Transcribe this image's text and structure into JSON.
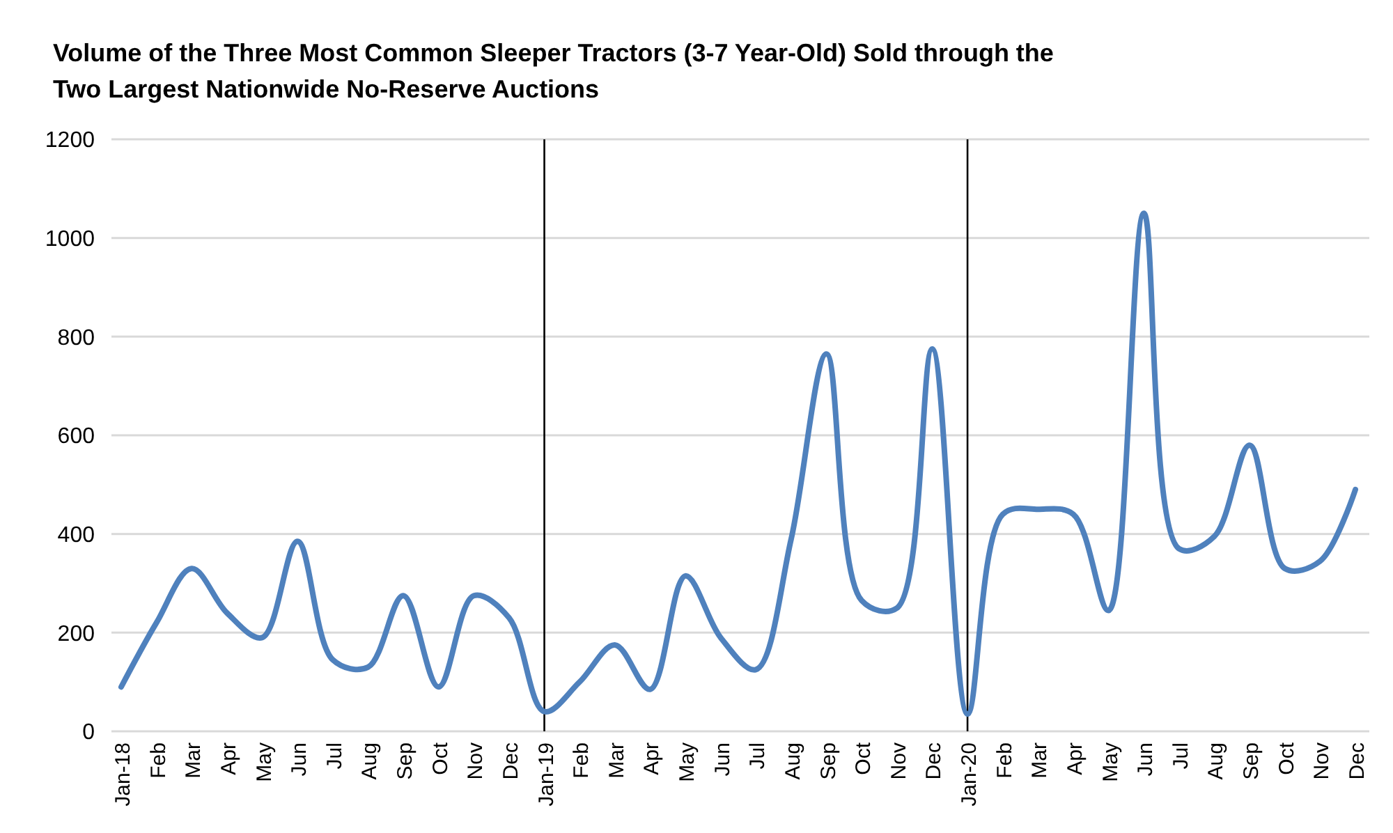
{
  "chart_data": {
    "type": "line",
    "title": "Volume of the Three Most Common Sleeper Tractors (3-7 Year-Old) Sold through the Two Largest Nationwide No-Reserve Auctions",
    "categories": [
      "Jan-18",
      "Feb",
      "Mar",
      "Apr",
      "May",
      "Jun",
      "Jul",
      "Aug",
      "Sep",
      "Oct",
      "Nov",
      "Dec",
      "Jan-19",
      "Feb",
      "Mar",
      "Apr",
      "May",
      "Jun",
      "Jul",
      "Aug",
      "Sep",
      "Oct",
      "Nov",
      "Dec",
      "Jan-20",
      "Feb",
      "Mar",
      "Apr",
      "May",
      "Jun",
      "Jul",
      "Aug",
      "Sep",
      "Oct",
      "Nov",
      "Dec"
    ],
    "series": [
      {
        "color": "#4f81bd",
        "values": [
          90,
          220,
          330,
          240,
          190,
          385,
          145,
          130,
          275,
          90,
          275,
          230,
          40,
          100,
          175,
          85,
          315,
          190,
          125,
          390,
          765,
          265,
          250,
          775,
          35,
          440,
          450,
          440,
          245,
          1050,
          370,
          395,
          580,
          330,
          345,
          490
        ]
      }
    ],
    "ylim": [
      0,
      1200
    ],
    "yticks": [
      0,
      200,
      400,
      600,
      800,
      1000,
      1200
    ],
    "grid": "y",
    "marker": "none",
    "line_style": "solid",
    "ref_lines": [
      {
        "axis": "x",
        "value": "Jan-19",
        "color": "#000000"
      },
      {
        "axis": "x",
        "value": "Jan-20",
        "color": "#000000"
      }
    ]
  }
}
